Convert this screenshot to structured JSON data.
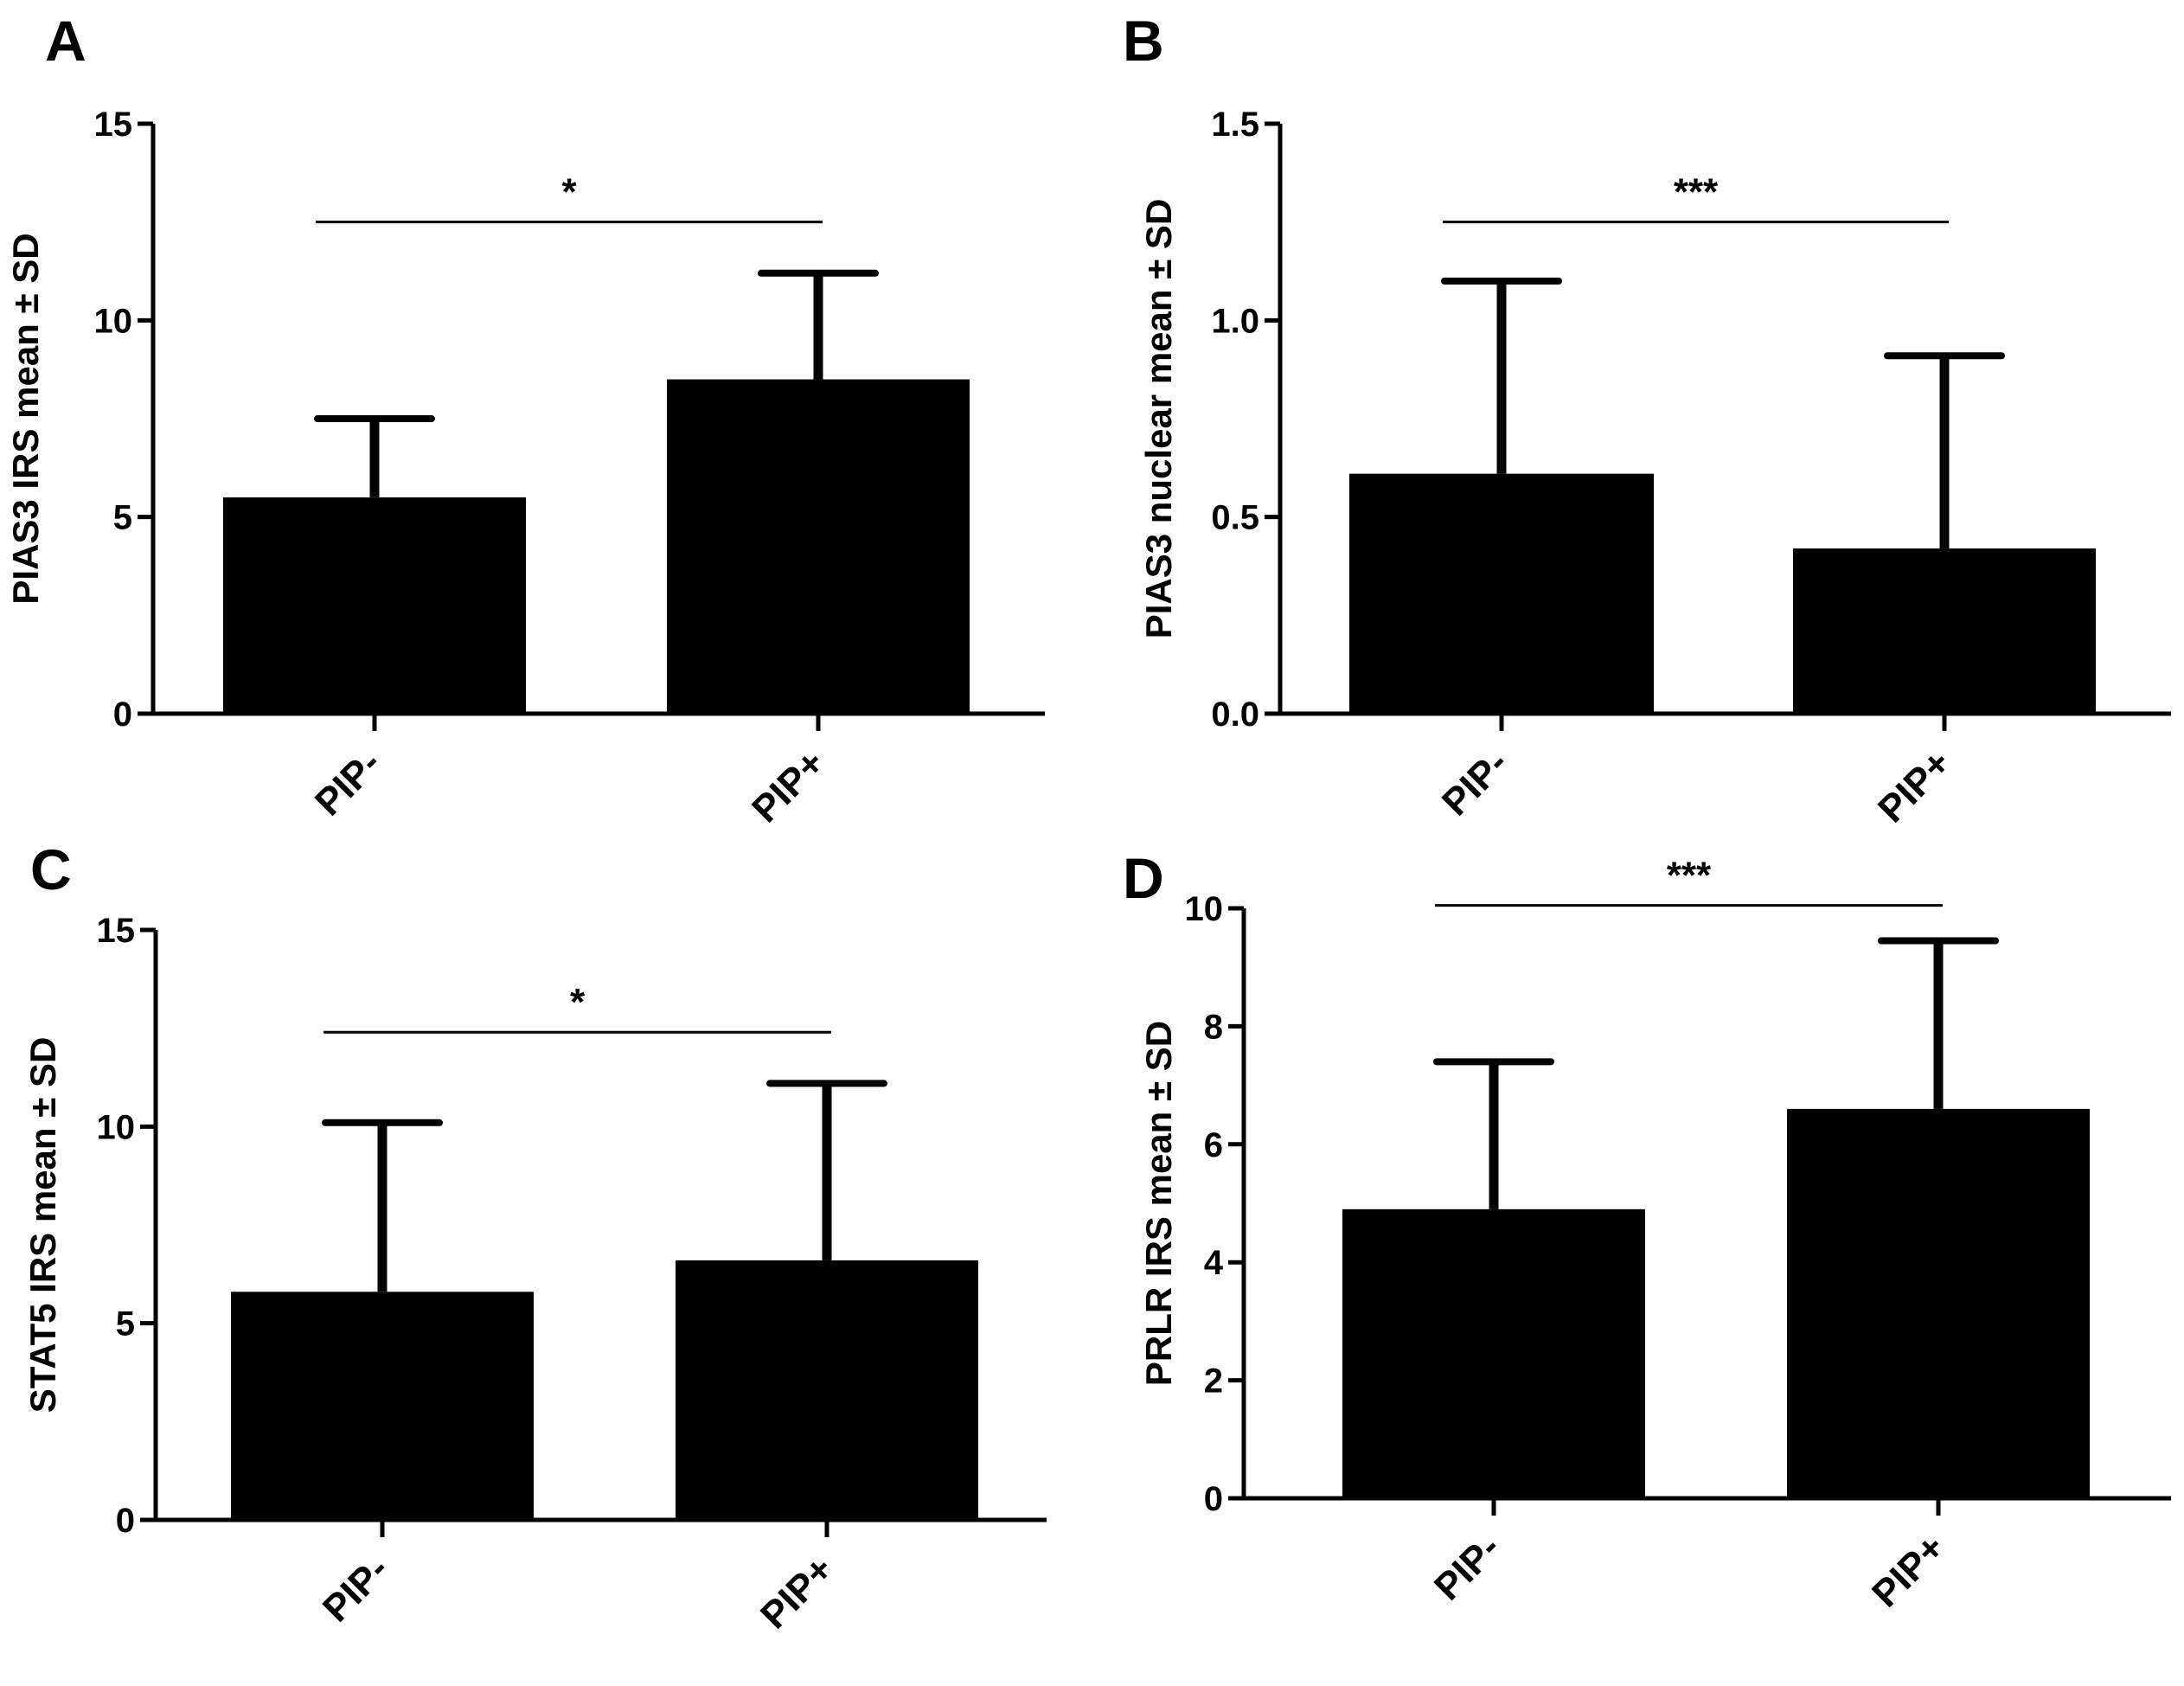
{
  "chart_data": [
    {
      "panel": "A",
      "type": "bar",
      "categories": [
        "PIP-",
        "PIP+"
      ],
      "values": [
        5.5,
        8.5
      ],
      "errors": [
        2.0,
        2.7
      ],
      "ylabel": "PIAS3 IRS mean ± SD",
      "ylim": [
        0,
        15
      ],
      "yticks": [
        "0",
        "5",
        "10",
        "15"
      ],
      "ytick_values": [
        0,
        5,
        10,
        15
      ],
      "significance": "*",
      "sig_level": 12.5,
      "colors": {
        "bar": "#000000",
        "axis": "#000000"
      }
    },
    {
      "panel": "B",
      "type": "bar",
      "categories": [
        "PIP-",
        "PIP+"
      ],
      "values": [
        0.61,
        0.42
      ],
      "errors": [
        0.49,
        0.49
      ],
      "ylabel": "PIAS3 nuclear mean ± SD",
      "ylim": [
        0,
        1.5
      ],
      "yticks": [
        "0.0",
        "0.5",
        "1.0",
        "1.5"
      ],
      "ytick_values": [
        0,
        0.5,
        1.0,
        1.5
      ],
      "significance": "***",
      "sig_level": 1.25,
      "colors": {
        "bar": "#000000",
        "axis": "#000000"
      }
    },
    {
      "panel": "C",
      "type": "bar",
      "categories": [
        "PIP-",
        "PIP+"
      ],
      "values": [
        5.8,
        6.6
      ],
      "errors": [
        4.3,
        4.5
      ],
      "ylabel": "STAT5 IRS mean ± SD",
      "ylim": [
        0,
        15
      ],
      "yticks": [
        "0",
        "5",
        "10",
        "15"
      ],
      "ytick_values": [
        0,
        5,
        10,
        15
      ],
      "significance": "*",
      "sig_level": 12.4,
      "colors": {
        "bar": "#000000",
        "axis": "#000000"
      }
    },
    {
      "panel": "D",
      "type": "bar",
      "categories": [
        "PIP-",
        "PIP+"
      ],
      "values": [
        4.9,
        6.6
      ],
      "errors": [
        2.5,
        2.85
      ],
      "ylabel": "PRLR IRS mean ± SD",
      "ylim": [
        0,
        10
      ],
      "yticks": [
        "0",
        "2",
        "4",
        "6",
        "8",
        "10"
      ],
      "ytick_values": [
        0,
        2,
        4,
        6,
        8,
        10
      ],
      "significance": "***",
      "sig_level": 10.05,
      "colors": {
        "bar": "#000000",
        "axis": "#000000"
      }
    }
  ]
}
